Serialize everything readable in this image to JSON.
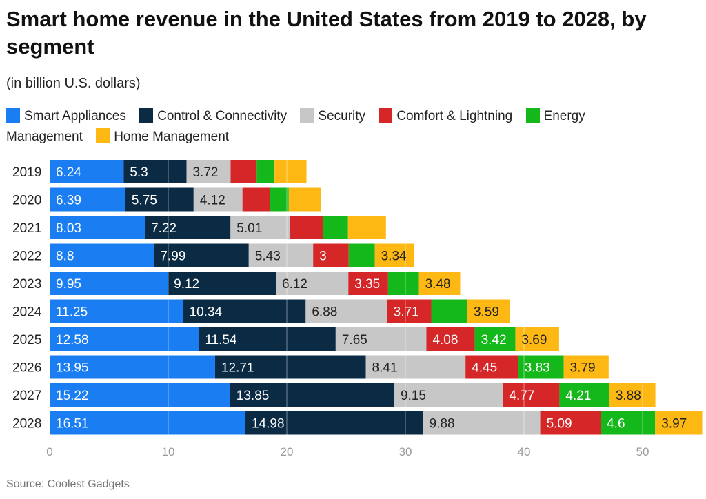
{
  "title": "Smart home revenue in the United States from 2019 to 2028, by segment",
  "subtitle": "(in billion U.S. dollars)",
  "source": "Source: Coolest Gadgets",
  "legend": [
    {
      "label": "Smart Appliances",
      "color": "#1a7ef2"
    },
    {
      "label": "Control & Connectivity",
      "color": "#0b2b45"
    },
    {
      "label": "Security",
      "color": "#c7c7c7"
    },
    {
      "label": "Comfort & Lightning",
      "color": "#d62728"
    },
    {
      "label": "Energy Management",
      "color": "#14b81a"
    },
    {
      "label": "Home Management",
      "color": "#fdb813"
    }
  ],
  "chart_data": {
    "type": "bar",
    "orientation": "horizontal",
    "stacked": true,
    "title": "Smart home revenue in the United States from 2019 to 2028, by segment",
    "subtitle": "(in billion U.S. dollars)",
    "xlabel": "",
    "ylabel": "",
    "xlim": [
      0,
      55
    ],
    "xticks": [
      0,
      10,
      20,
      30,
      40,
      50
    ],
    "grid": true,
    "categories": [
      "2019",
      "2020",
      "2021",
      "2022",
      "2023",
      "2024",
      "2025",
      "2026",
      "2027",
      "2028"
    ],
    "series": [
      {
        "name": "Smart Appliances",
        "color": "#1a7ef2",
        "label_color": "#ffffff",
        "values": [
          6.24,
          6.39,
          8.03,
          8.8,
          9.95,
          11.25,
          12.58,
          13.95,
          15.22,
          16.51
        ],
        "labels": [
          true,
          true,
          true,
          true,
          true,
          true,
          true,
          true,
          true,
          true
        ]
      },
      {
        "name": "Control & Connectivity",
        "color": "#0b2b45",
        "label_color": "#ffffff",
        "values": [
          5.3,
          5.75,
          7.22,
          7.99,
          9.12,
          10.34,
          11.54,
          12.71,
          13.85,
          14.98
        ],
        "labels": [
          true,
          true,
          true,
          true,
          true,
          true,
          true,
          true,
          true,
          true
        ]
      },
      {
        "name": "Security",
        "color": "#c7c7c7",
        "label_color": "#222222",
        "values": [
          3.72,
          4.12,
          5.01,
          5.43,
          6.12,
          6.88,
          7.65,
          8.41,
          9.15,
          9.88
        ],
        "labels": [
          true,
          true,
          true,
          true,
          true,
          true,
          true,
          true,
          true,
          true
        ]
      },
      {
        "name": "Comfort & Lightning",
        "color": "#d62728",
        "label_color": "#ffffff",
        "values": [
          2.2,
          2.3,
          2.8,
          3,
          3.35,
          3.71,
          4.08,
          4.45,
          4.77,
          5.09
        ],
        "labels": [
          false,
          false,
          false,
          true,
          true,
          true,
          true,
          true,
          true,
          true
        ]
      },
      {
        "name": "Energy Management",
        "color": "#14b81a",
        "label_color": "#ffffff",
        "values": [
          1.5,
          1.6,
          2.1,
          2.2,
          2.6,
          3.05,
          3.42,
          3.83,
          4.21,
          4.6
        ],
        "labels": [
          false,
          false,
          false,
          false,
          false,
          false,
          true,
          true,
          true,
          true
        ]
      },
      {
        "name": "Home Management",
        "color": "#fdb813",
        "label_color": "#222222",
        "values": [
          2.7,
          2.7,
          3.2,
          3.34,
          3.48,
          3.59,
          3.69,
          3.79,
          3.88,
          3.97
        ],
        "labels": [
          false,
          false,
          false,
          true,
          true,
          true,
          true,
          true,
          true,
          true
        ]
      }
    ]
  }
}
